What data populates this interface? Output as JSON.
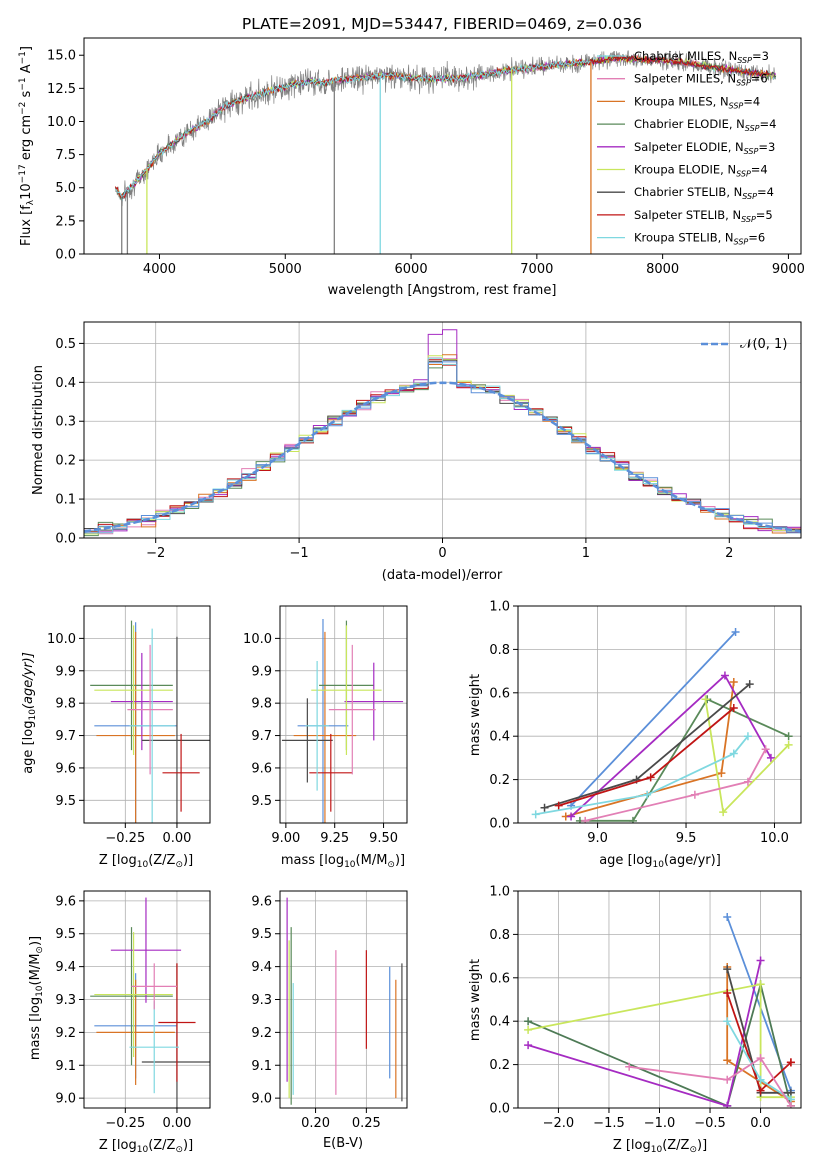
{
  "colors": {
    "c_blue": "#5b8fd9",
    "c_orange": "#d97425",
    "c_green": "#5a8a5a",
    "c_purple": "#a52bc2",
    "c_yellow": "#c9e65c",
    "c_dark": "#4a4a4a",
    "c_red": "#c01515",
    "c_cyan": "#7fd8e0",
    "c_pink": "#e27fb5",
    "c_dgreen": "#4d7a55",
    "c_magenta": "#a52bc2",
    "c_grey": "#808080"
  },
  "chart_data": [
    {
      "id": "spectrum",
      "type": "line",
      "title": "PLATE=2091, MJD=53447, FIBERID=0469, z=0.036",
      "xlabel": "wavelength [Angstrom, rest frame]",
      "ylabel_main": "Flux [f",
      "ylabel_sub": "λ",
      "ylabel_mid": "10",
      "ylabel_sup1": "−17",
      "ylabel_rest": " erg cm",
      "ylabel_sup2": "−2",
      "ylabel_rest2": " s",
      "ylabel_sup3": "−1",
      "ylabel_rest3": " A",
      "ylabel_sup4": "−1",
      "ylabel_end": "]",
      "xlim": [
        3400,
        9100
      ],
      "ylim": [
        0,
        16.3
      ],
      "xticks": [
        "4000",
        "5000",
        "6000",
        "7000",
        "8000",
        "9000"
      ],
      "yticks": [
        "0.0",
        "2.5",
        "5.0",
        "7.5",
        "10.0",
        "12.5",
        "15.0"
      ],
      "legend_placement": "right",
      "legend": [
        {
          "label": "Chabrier MILES, N",
          "sub": "SSP",
          "val": "=3",
          "color": "c_cyan"
        },
        {
          "label": "Salpeter MILES, N",
          "sub": "SSP",
          "val": "=6",
          "color": "c_pink"
        },
        {
          "label": "Kroupa MILES, N",
          "sub": "SSP",
          "val": "=4",
          "color": "c_orange"
        },
        {
          "label": "Chabrier ELODIE, N",
          "sub": "SSP",
          "val": "=4",
          "color": "c_green"
        },
        {
          "label": "Salpeter ELODIE, N",
          "sub": "SSP",
          "val": "=3",
          "color": "c_purple"
        },
        {
          "label": "Kroupa ELODIE, N",
          "sub": "SSP",
          "val": "=4",
          "color": "c_yellow"
        },
        {
          "label": "Chabrier STELIB, N",
          "sub": "SSP",
          "val": "=4",
          "color": "c_dark"
        },
        {
          "label": "Salpeter STELIB, N",
          "sub": "SSP",
          "val": "=5",
          "color": "c_red"
        },
        {
          "label": "Kroupa STELIB, N",
          "sub": "SSP",
          "val": "=6",
          "color": "c_cyan"
        }
      ],
      "continuum": {
        "x": [
          3650,
          3700,
          3800,
          3900,
          4000,
          4100,
          4200,
          4300,
          4400,
          4500,
          4600,
          4700,
          4800,
          4900,
          5000,
          5100,
          5200,
          5300,
          5400,
          5500,
          5600,
          5700,
          5800,
          5900,
          6000,
          6200,
          6400,
          6600,
          6800,
          7000,
          7200,
          7400,
          7500,
          7600,
          7800,
          8000,
          8200,
          8400,
          8600,
          8800,
          8900
        ],
        "y": [
          5.0,
          4.3,
          5.3,
          6.4,
          7.6,
          8.3,
          9.0,
          9.6,
          10.2,
          11.0,
          11.5,
          11.8,
          12.1,
          12.4,
          12.6,
          12.9,
          13.0,
          12.9,
          13.1,
          13.2,
          13.3,
          13.4,
          13.5,
          13.4,
          13.3,
          13.2,
          13.3,
          13.6,
          13.9,
          14.1,
          14.3,
          14.5,
          14.6,
          14.8,
          14.7,
          14.6,
          14.4,
          14.1,
          13.8,
          13.6,
          13.4
        ]
      },
      "dips": [
        {
          "x": 3700,
          "color": "c_grey"
        },
        {
          "x": 3745,
          "color": "c_grey"
        },
        {
          "x": 3900,
          "color": "c_yellow"
        },
        {
          "x": 5390,
          "color": "c_grey"
        },
        {
          "x": 5755,
          "color": "c_cyan"
        },
        {
          "x": 6800,
          "color": "c_yellow"
        },
        {
          "x": 7430,
          "color": "c_orange"
        }
      ]
    },
    {
      "id": "residuals",
      "type": "bar",
      "xlabel": "(data-model)/error",
      "ylabel": "Normed distribution",
      "xlim": [
        -2.5,
        2.5
      ],
      "ylim": [
        0,
        0.555
      ],
      "xticks": [
        "−2",
        "−1",
        "0",
        "1",
        "2"
      ],
      "yticks": [
        "0.0",
        "0.1",
        "0.2",
        "0.3",
        "0.4",
        "0.5"
      ],
      "legend_placement": "top-right",
      "legend": [
        {
          "label": "𝒩(0, 1)",
          "color": "c_blue"
        }
      ],
      "bin_width": 0.1
    },
    {
      "id": "age_vs_Z",
      "type": "scatter",
      "xlabel": "Z [log",
      "xlabel_sub": "10",
      "xlabel_end": "(Z/Z",
      "xlabel_sun": "⊙",
      "xlabel_close": ")]",
      "ylabel": "age  [log",
      "ylabel_sub": "10",
      "ylabel_end": "(age/yr)]",
      "xlim": [
        -0.45,
        0.16
      ],
      "ylim": [
        9.43,
        10.1
      ],
      "xticks": [
        "−0.25",
        "0.00"
      ],
      "xtick_values": [
        -0.25,
        0.0
      ],
      "yticks": [
        "9.5",
        "9.6",
        "9.7",
        "9.8",
        "9.9",
        "10.0"
      ],
      "ytick_values": [
        9.5,
        9.6,
        9.7,
        9.8,
        9.9,
        10.0
      ],
      "points": [
        {
          "x": -0.2,
          "y": 9.73,
          "xerr": 0.2,
          "yerr": 0.32,
          "color": "c_blue"
        },
        {
          "x": -0.2,
          "y": 9.7,
          "xerr": 0.19,
          "yerr": 0.32,
          "color": "c_orange"
        },
        {
          "x": -0.22,
          "y": 9.855,
          "xerr": 0.2,
          "yerr": 0.2,
          "color": "c_green"
        },
        {
          "x": -0.17,
          "y": 9.805,
          "xerr": 0.15,
          "yerr": 0.15,
          "color": "c_purple"
        },
        {
          "x": -0.21,
          "y": 9.84,
          "xerr": 0.19,
          "yerr": 0.2,
          "color": "c_yellow"
        },
        {
          "x": 0.0,
          "y": 9.685,
          "xerr": 0.17,
          "yerr": 0.32,
          "color": "c_dark"
        },
        {
          "x": 0.02,
          "y": 9.585,
          "xerr": 0.09,
          "yerr": 0.12,
          "color": "c_red"
        },
        {
          "x": -0.12,
          "y": 9.73,
          "xerr": 0.11,
          "yerr": 0.3,
          "color": "c_cyan"
        },
        {
          "x": -0.13,
          "y": 9.78,
          "xerr": 0.11,
          "yerr": 0.2,
          "color": "c_pink"
        }
      ]
    },
    {
      "id": "age_vs_mass",
      "type": "scatter",
      "xlabel": "mass [log",
      "xlabel_sub": "10",
      "xlabel_end": "(M/M",
      "xlabel_sun": "⊙",
      "xlabel_close": ")]",
      "xlim": [
        8.97,
        9.62
      ],
      "ylim": [
        9.43,
        10.1
      ],
      "xticks": [
        "9.00",
        "9.25",
        "9.50"
      ],
      "xtick_values": [
        9.0,
        9.25,
        9.5
      ],
      "yticks": [
        "9.5",
        "9.6",
        "9.7",
        "9.8",
        "9.9",
        "10.0"
      ],
      "ytick_values": [
        9.5,
        9.6,
        9.7,
        9.8,
        9.9,
        10.0
      ],
      "points": [
        {
          "x": 9.19,
          "y": 9.73,
          "xerr": 0.13,
          "yerr": 0.33,
          "color": "c_blue"
        },
        {
          "x": 9.2,
          "y": 9.7,
          "xerr": 0.16,
          "yerr": 0.32,
          "color": "c_orange"
        },
        {
          "x": 9.31,
          "y": 9.855,
          "xerr": 0.14,
          "yerr": 0.2,
          "color": "c_green"
        },
        {
          "x": 9.45,
          "y": 9.805,
          "xerr": 0.15,
          "yerr": 0.12,
          "color": "c_purple"
        },
        {
          "x": 9.31,
          "y": 9.84,
          "xerr": 0.18,
          "yerr": 0.2,
          "color": "c_yellow"
        },
        {
          "x": 9.11,
          "y": 9.685,
          "xerr": 0.13,
          "yerr": 0.13,
          "color": "c_dark"
        },
        {
          "x": 9.23,
          "y": 9.585,
          "xerr": 0.11,
          "yerr": 0.12,
          "color": "c_red"
        },
        {
          "x": 9.16,
          "y": 9.73,
          "xerr": 0.06,
          "yerr": 0.2,
          "color": "c_cyan"
        },
        {
          "x": 9.34,
          "y": 9.78,
          "xerr": 0.12,
          "yerr": 0.2,
          "color": "c_pink"
        }
      ]
    },
    {
      "id": "weight_vs_age",
      "type": "line",
      "xlabel": "age  [log",
      "xlabel_sub": "10",
      "xlabel_end": "(age/yr)]",
      "ylabel": "mass weight",
      "xlim": [
        8.55,
        10.15
      ],
      "ylim": [
        0,
        1
      ],
      "xticks": [
        "9.0",
        "9.5",
        "10.0"
      ],
      "xtick_values": [
        9.0,
        9.5,
        10.0
      ],
      "yticks": [
        "0.0",
        "0.2",
        "0.4",
        "0.6",
        "0.8",
        "1.0"
      ],
      "ytick_values": [
        0,
        0.2,
        0.4,
        0.6,
        0.8,
        1.0
      ],
      "series": [
        {
          "color": "c_blue",
          "x": [
            8.85,
            9.78
          ],
          "y": [
            0.08,
            0.88
          ]
        },
        {
          "color": "c_orange",
          "x": [
            8.82,
            9.7,
            9.77
          ],
          "y": [
            0.03,
            0.23,
            0.65
          ]
        },
        {
          "color": "c_green",
          "x": [
            8.9,
            9.2,
            9.62,
            10.08
          ],
          "y": [
            0.01,
            0.01,
            0.57,
            0.4
          ]
        },
        {
          "color": "c_purple",
          "x": [
            8.85,
            9.72,
            9.98
          ],
          "y": [
            0.03,
            0.68,
            0.3
          ]
        },
        {
          "color": "c_yellow",
          "x": [
            9.61,
            9.71,
            10.08
          ],
          "y": [
            0.57,
            0.05,
            0.36
          ]
        },
        {
          "color": "c_dark",
          "x": [
            8.7,
            9.22,
            9.86
          ],
          "y": [
            0.07,
            0.2,
            0.64
          ]
        },
        {
          "color": "c_red",
          "x": [
            8.78,
            9.3,
            9.77
          ],
          "y": [
            0.08,
            0.21,
            0.53
          ]
        },
        {
          "color": "c_cyan",
          "x": [
            8.65,
            9.28,
            9.77,
            9.85
          ],
          "y": [
            0.04,
            0.13,
            0.32,
            0.4
          ]
        },
        {
          "color": "c_pink",
          "x": [
            8.93,
            9.55,
            9.85,
            9.95
          ],
          "y": [
            0.01,
            0.13,
            0.19,
            0.34
          ]
        }
      ]
    },
    {
      "id": "mass_vs_Z",
      "type": "scatter",
      "xlabel": "Z [log",
      "xlabel_sub": "10",
      "xlabel_end": "(Z/Z",
      "xlabel_sun": "⊙",
      "xlabel_close": ")]",
      "ylabel": "mass [log",
      "ylabel_sub": "10",
      "ylabel_end": "(M/M",
      "ylabel_sun": "⊙",
      "ylabel_close": ")]",
      "xlim": [
        -0.45,
        0.16
      ],
      "ylim": [
        8.97,
        9.63
      ],
      "xticks": [
        "−0.25",
        "0.00"
      ],
      "xtick_values": [
        -0.25,
        0.0
      ],
      "yticks": [
        "9.0",
        "9.1",
        "9.2",
        "9.3",
        "9.4",
        "9.5",
        "9.6"
      ],
      "ytick_values": [
        9.0,
        9.1,
        9.2,
        9.3,
        9.4,
        9.5,
        9.6
      ],
      "points": [
        {
          "x": -0.2,
          "y": 9.22,
          "xerr": 0.2,
          "yerr": 0.16,
          "color": "c_blue"
        },
        {
          "x": -0.2,
          "y": 9.2,
          "xerr": 0.19,
          "yerr": 0.16,
          "color": "c_orange"
        },
        {
          "x": -0.22,
          "y": 9.31,
          "xerr": 0.2,
          "yerr": 0.21,
          "color": "c_green"
        },
        {
          "x": -0.15,
          "y": 9.45,
          "xerr": 0.17,
          "yerr": 0.16,
          "color": "c_purple"
        },
        {
          "x": -0.21,
          "y": 9.315,
          "xerr": 0.19,
          "yerr": 0.19,
          "color": "c_yellow"
        },
        {
          "x": 0.0,
          "y": 9.11,
          "xerr": 0.17,
          "yerr": 0.3,
          "color": "c_dark"
        },
        {
          "x": 0.0,
          "y": 9.23,
          "xerr": 0.09,
          "yerr": 0.18,
          "color": "c_red"
        },
        {
          "x": -0.11,
          "y": 9.155,
          "xerr": 0.12,
          "yerr": 0.14,
          "color": "c_cyan"
        },
        {
          "x": -0.11,
          "y": 9.34,
          "xerr": 0.11,
          "yerr": 0.07,
          "color": "c_pink"
        }
      ]
    },
    {
      "id": "mass_vs_ebv",
      "type": "scatter",
      "xlabel": "E(B-V)",
      "xlim": [
        0.165,
        0.29
      ],
      "ylim": [
        8.97,
        9.63
      ],
      "xticks": [
        "0.20",
        "0.25"
      ],
      "xtick_values": [
        0.2,
        0.25
      ],
      "yticks": [
        "9.0",
        "9.1",
        "9.2",
        "9.3",
        "9.4",
        "9.5",
        "9.6"
      ],
      "ytick_values": [
        9.0,
        9.1,
        9.2,
        9.3,
        9.4,
        9.5,
        9.6
      ],
      "points": [
        {
          "x": 0.172,
          "y": 9.33,
          "xerr": 0,
          "yerr": 0.28,
          "color": "c_purple"
        },
        {
          "x": 0.176,
          "y": 9.25,
          "xerr": 0,
          "yerr": 0.27,
          "color": "c_green"
        },
        {
          "x": 0.178,
          "y": 9.18,
          "xerr": 0,
          "yerr": 0.17,
          "color": "c_cyan"
        },
        {
          "x": 0.174,
          "y": 9.24,
          "xerr": 0,
          "yerr": 0.24,
          "color": "c_yellow"
        },
        {
          "x": 0.22,
          "y": 9.23,
          "xerr": 0,
          "yerr": 0.22,
          "color": "c_pink"
        },
        {
          "x": 0.25,
          "y": 9.3,
          "xerr": 0,
          "yerr": 0.15,
          "color": "c_red"
        },
        {
          "x": 0.273,
          "y": 9.23,
          "xerr": 0,
          "yerr": 0.17,
          "color": "c_blue"
        },
        {
          "x": 0.279,
          "y": 9.18,
          "xerr": 0,
          "yerr": 0.18,
          "color": "c_orange"
        },
        {
          "x": 0.285,
          "y": 9.2,
          "xerr": 0,
          "yerr": 0.21,
          "color": "c_dark"
        }
      ]
    },
    {
      "id": "weight_vs_Z",
      "type": "line",
      "xlabel": "Z [log",
      "xlabel_sub": "10",
      "xlabel_end": "(Z/Z",
      "xlabel_sun": "⊙",
      "xlabel_close": ")]",
      "ylabel": "mass weight",
      "xlim": [
        -2.4,
        0.4
      ],
      "ylim": [
        0,
        1
      ],
      "xticks": [
        "−2.0",
        "−1.5",
        "−1.0",
        "−0.5",
        "0.0"
      ],
      "xtick_values": [
        -2.0,
        -1.5,
        -1.0,
        -0.5,
        0.0
      ],
      "yticks": [
        "0.0",
        "0.2",
        "0.4",
        "0.6",
        "0.8",
        "1.0"
      ],
      "ytick_values": [
        0,
        0.2,
        0.4,
        0.6,
        0.8,
        1.0
      ],
      "series": [
        {
          "color": "c_blue",
          "x": [
            -0.33,
            0.3
          ],
          "y": [
            0.88,
            0.08
          ]
        },
        {
          "color": "c_orange",
          "x": [
            -0.33,
            -0.33,
            0.3
          ],
          "y": [
            0.65,
            0.22,
            0.03
          ]
        },
        {
          "color": "c_dgreen",
          "x": [
            -2.3,
            -0.33,
            0.0,
            0.3
          ],
          "y": [
            0.4,
            0.01,
            0.57,
            0.01
          ]
        },
        {
          "color": "c_magenta",
          "x": [
            -2.3,
            -0.33,
            0.0
          ],
          "y": [
            0.29,
            0.01,
            0.68
          ]
        },
        {
          "color": "c_yellow",
          "x": [
            -2.3,
            0.0,
            0.0,
            0.3
          ],
          "y": [
            0.36,
            0.57,
            0.05,
            0.05
          ]
        },
        {
          "color": "c_dark",
          "x": [
            -0.33,
            0.0,
            0.3
          ],
          "y": [
            0.64,
            0.07,
            0.07
          ]
        },
        {
          "color": "c_red",
          "x": [
            -0.33,
            0.0,
            0.3,
            0.3
          ],
          "y": [
            0.53,
            0.08,
            0.21,
            0.21
          ]
        },
        {
          "color": "c_cyan",
          "x": [
            -0.33,
            0.0,
            0.3
          ],
          "y": [
            0.4,
            0.13,
            0.04
          ]
        },
        {
          "color": "c_pink",
          "x": [
            -1.3,
            -0.33,
            0.0,
            0.3
          ],
          "y": [
            0.19,
            0.13,
            0.23,
            0.01
          ]
        }
      ]
    }
  ]
}
